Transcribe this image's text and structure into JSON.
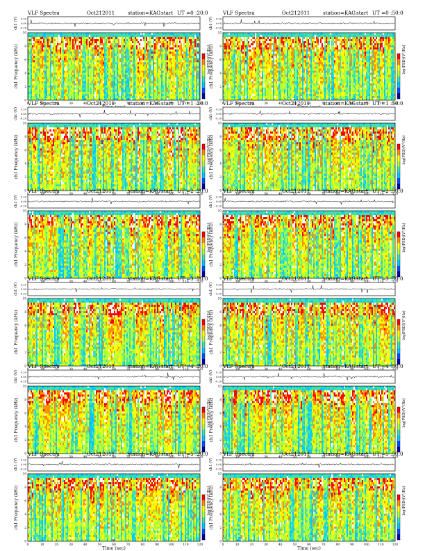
{
  "page_title": "VLF Spectra",
  "chart_data": {
    "type": "heatmap",
    "shared": {
      "xlabel": "Time (sec)",
      "ylabel": "ch1 Frequency (kHz)",
      "trace_ylabel": "ch1 (V)",
      "colorbar_label": "log(PSD)(V²/Hz)",
      "colorbar_ticks": [
        "-",
        "-",
        "-",
        "-"
      ],
      "xlim": [
        0,
        120
      ],
      "ylim": [
        0,
        10
      ],
      "xticks": [
        "0",
        "10",
        "20",
        "30",
        "40",
        "50",
        "60",
        "70",
        "80",
        "90",
        "100",
        "110",
        "120"
      ],
      "yticks": [
        "0",
        "2",
        "4",
        "6",
        "8",
        "10"
      ],
      "trace_yticks": [
        "0.20",
        "0.00",
        "-0.20"
      ],
      "colormap": [
        "#0000a0",
        "#0050ff",
        "#00c8ff",
        "#40e0b0",
        "#a8ff40",
        "#ffff00",
        "#ff9000",
        "#ff0000",
        "#ffffff"
      ]
    },
    "panels": [
      {
        "title": "VLF Spectra",
        "date": "Oct212011",
        "station": "station=KAG",
        "start": "start",
        "ut": "UT =0 :20:0"
      },
      {
        "title": "VLF Spectra",
        "date": "Oct212011",
        "station": "station=KAG",
        "start": "start",
        "ut": "UT =0 :50:0"
      },
      {
        "title": "VLF Spectra",
        "date": "Oct212011",
        "station": "station=KAG",
        "start": "start",
        "ut": "UT =1 :20:0"
      },
      {
        "title": "VLF Spectra",
        "date": "Oct212011",
        "station": "station=KAG",
        "start": "start",
        "ut": "UT =1 :50:0"
      },
      {
        "title": "VLF Spectra",
        "date": "Oct212011",
        "station": "station=KAG",
        "start": "start",
        "ut": "UT =2 :20:0"
      },
      {
        "title": "VLF Spectra",
        "date": "Oct212011",
        "station": "station=KAG",
        "start": "start",
        "ut": "UT =2 :50:0"
      },
      {
        "title": "VLF Spectra",
        "date": "Oct212011",
        "station": "station=KAG",
        "start": "start",
        "ut": "UT =3 :20:0"
      },
      {
        "title": "VLF Spectra",
        "date": "Oct212011",
        "station": "station=KAG",
        "start": "start",
        "ut": "UT =3 :50:0"
      },
      {
        "title": "VLF Spectra",
        "date": "Oct212011",
        "station": "station=KAG",
        "start": "start",
        "ut": "UT =4 :20:0"
      },
      {
        "title": "VLF Spectra",
        "date": "Oct212011",
        "station": "station=KAG",
        "start": "start",
        "ut": "UT =4 :50:0"
      },
      {
        "title": "VLF Spectra",
        "date": "Oct212011",
        "station": "station=KAG",
        "start": "start",
        "ut": "UT =5 :20:0"
      },
      {
        "title": "VLF Spectra",
        "date": "Oct212011",
        "station": "station=KAG",
        "start": "start",
        "ut": "UT =5 :50:0"
      }
    ]
  }
}
